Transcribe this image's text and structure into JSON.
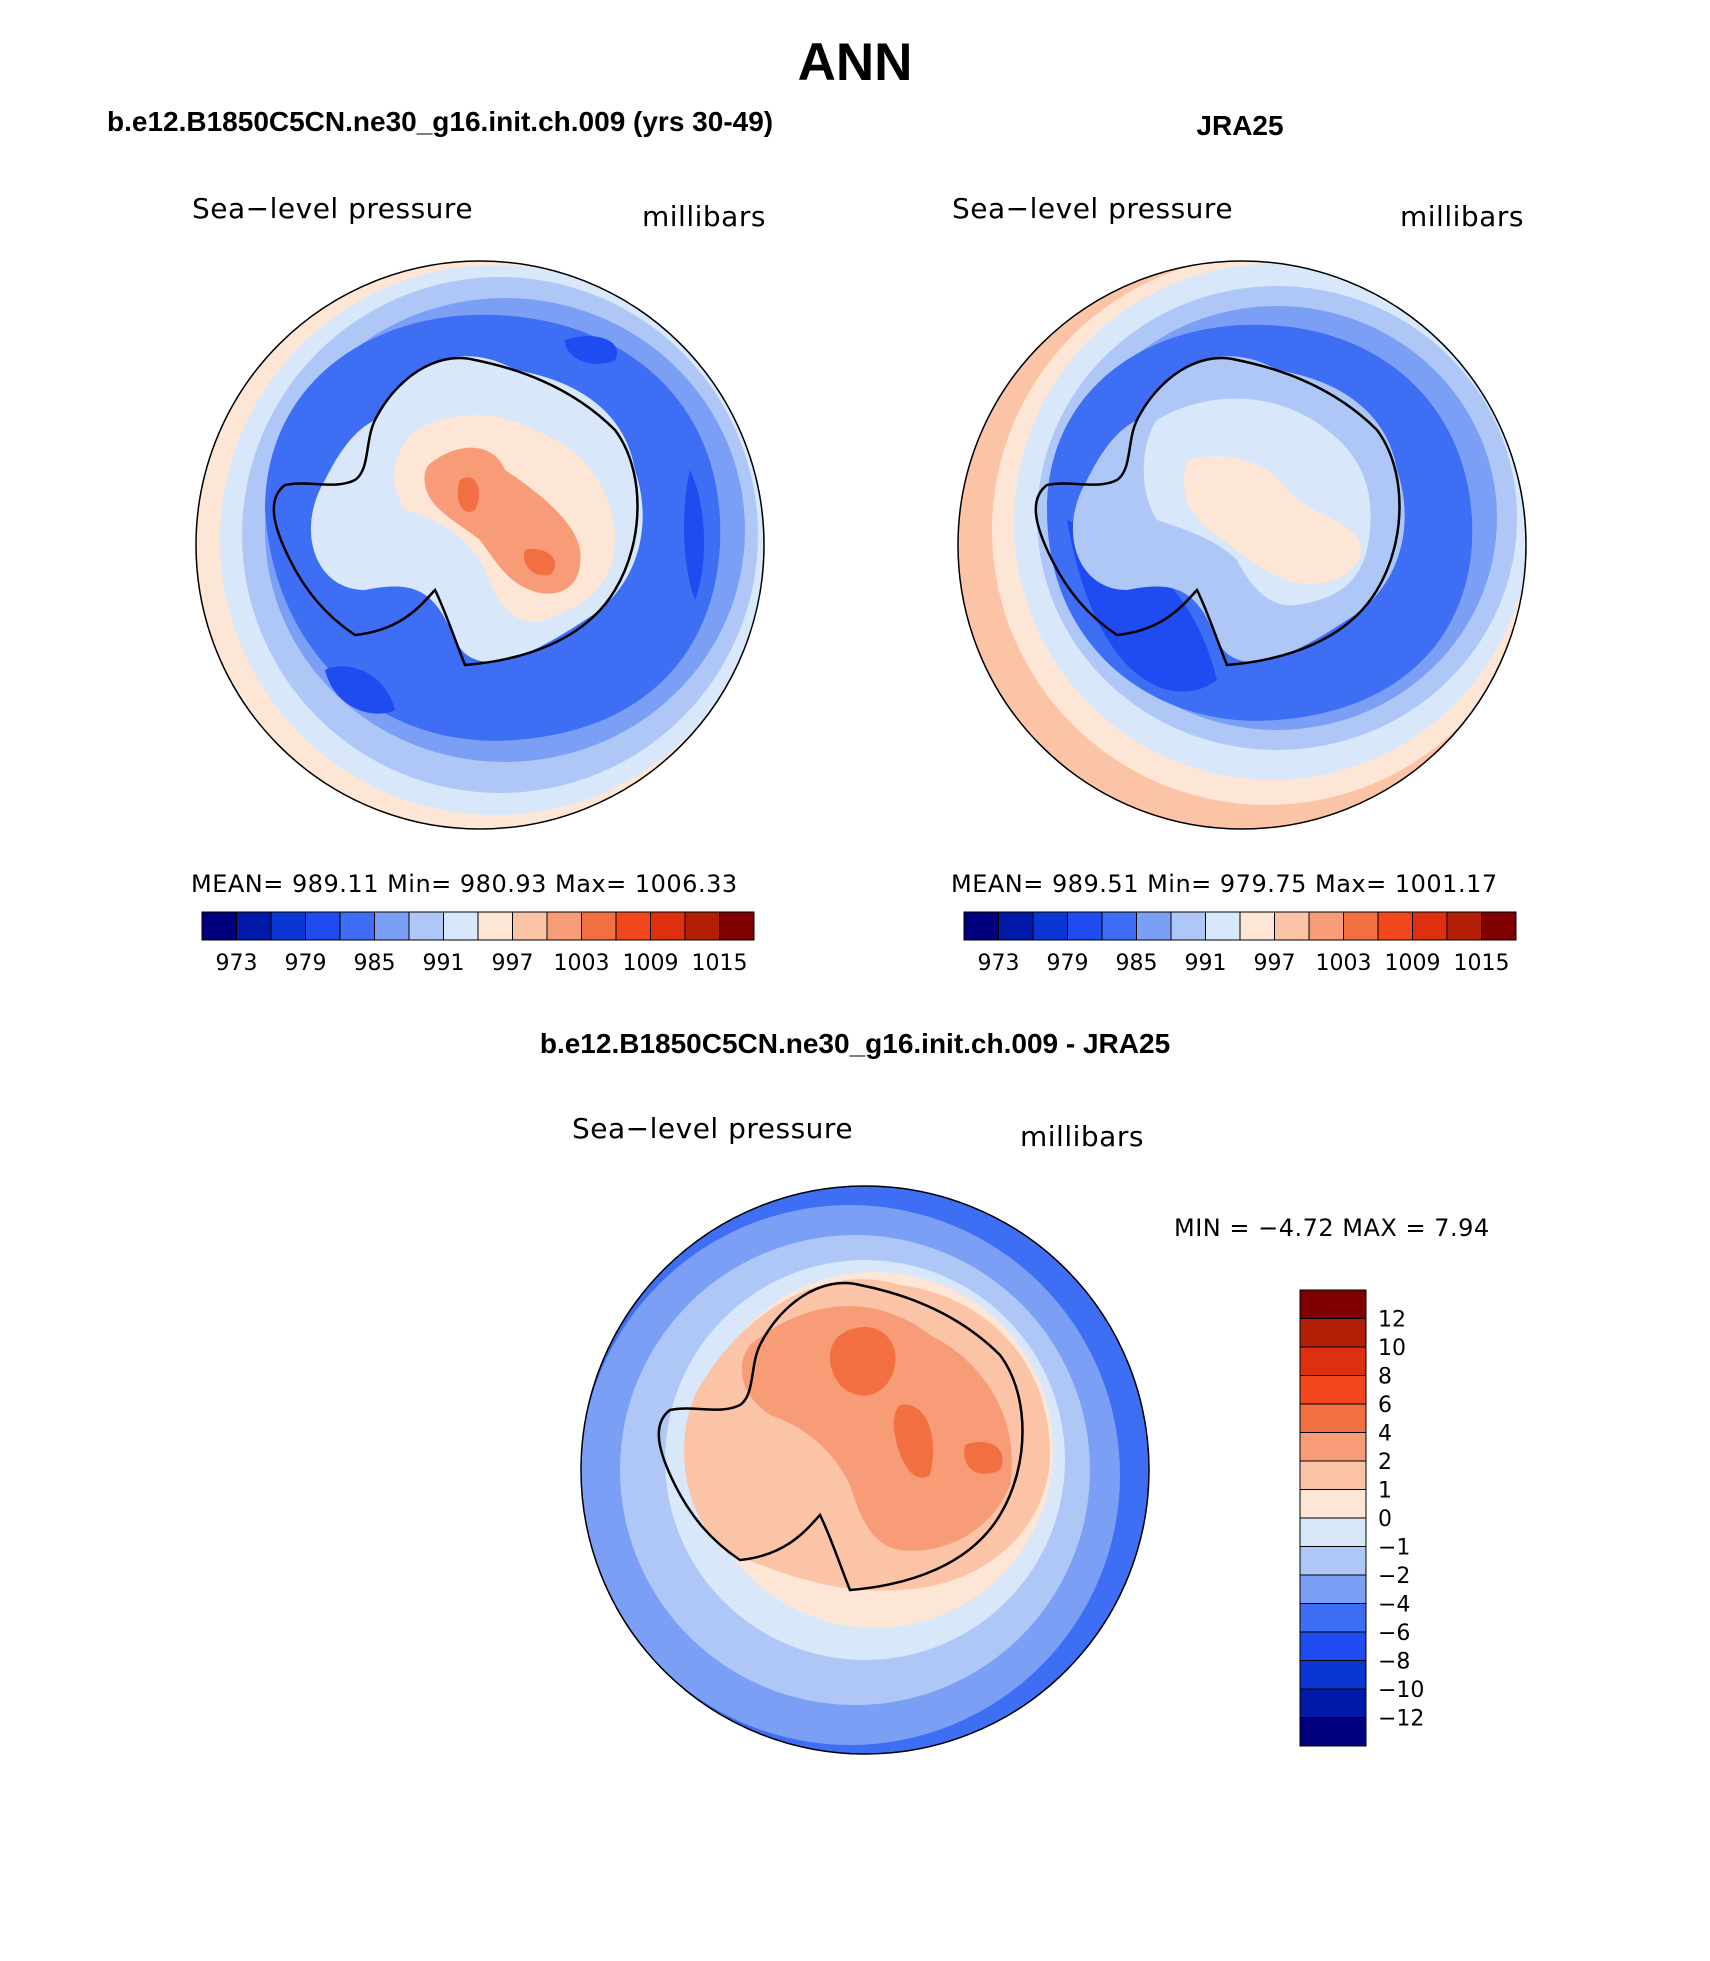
{
  "page": {
    "title": "ANN",
    "panel_left_title": "b.e12.B1850C5CN.ne30_g16.init.ch.009 (yrs 30-49)",
    "panel_right_title": "JRA25",
    "panel_diff_title": "b.e12.B1850C5CN.ne30_g16.init.ch.009 - JRA25"
  },
  "maps": {
    "left": {
      "variable": "Sea−level pressure",
      "units": "millibars",
      "stats": "MEAN=  989.11    Min=  980.93    Max=  1006.33"
    },
    "right": {
      "variable": "Sea−level pressure",
      "units": "millibars",
      "stats": "MEAN=  989.51    Min=  979.75    Max=  1001.17"
    },
    "diff": {
      "variable": "Sea−level pressure",
      "units": "millibars",
      "stats": "MIN =    −4.72  MAX =     7.94"
    }
  },
  "colorbars": {
    "abs_colors": [
      "#00007f",
      "#0019a8",
      "#0a36d4",
      "#1e4cf0",
      "#3d6ef4",
      "#7a9ff5",
      "#aec7f7",
      "#d9e7fb",
      "#fde6d5",
      "#fbc4a7",
      "#f79c76",
      "#f26f42",
      "#f2471c",
      "#de2f0e",
      "#b21e06",
      "#7f0000"
    ],
    "abs_labels": [
      "973",
      "979",
      "985",
      "991",
      "997",
      "1003",
      "1009",
      "1015"
    ],
    "diff_colors": [
      "#00007f",
      "#0019a8",
      "#0a36d4",
      "#1e4cf0",
      "#3d6ef4",
      "#7a9ff5",
      "#aec7f7",
      "#d9e7fb",
      "#fde6d5",
      "#fbc4a7",
      "#f79c76",
      "#f26f42",
      "#f2471c",
      "#de2f0e",
      "#b21e06",
      "#7f0000"
    ],
    "diff_labels": [
      "−12",
      "−10",
      "−8",
      "−6",
      "−4",
      "−2",
      "−1",
      "0",
      "1",
      "2",
      "4",
      "6",
      "8",
      "10",
      "12"
    ]
  }
}
